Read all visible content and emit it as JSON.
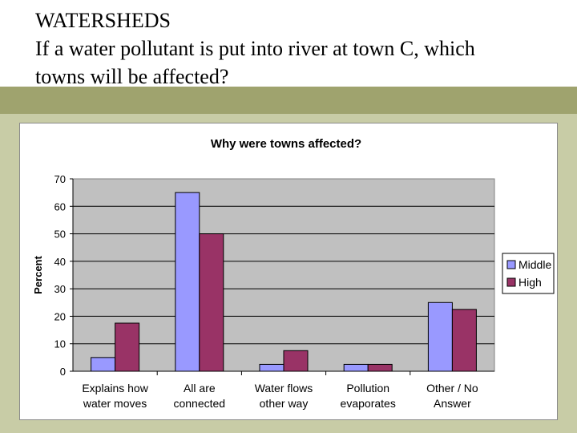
{
  "slide": {
    "title_line1": "WATERSHEDS",
    "title_line2": "If a water pollutant is put into river at town C, which",
    "title_line3": "towns will be affected?"
  },
  "colors": {
    "middle": "#9999ff",
    "high": "#993366",
    "plot_bg": "#c0c0c0",
    "band": "#9fa36e",
    "background": "#c8cca6"
  },
  "chart_data": {
    "type": "bar",
    "title": "Why were towns affected?",
    "xlabel": "",
    "ylabel": "Percent",
    "ylim": [
      0,
      70
    ],
    "yticks": [
      0,
      10,
      20,
      30,
      40,
      50,
      60,
      70
    ],
    "grid": true,
    "legend_position": "right",
    "categories": [
      [
        "Explains how",
        "water moves"
      ],
      [
        "All are",
        "connected"
      ],
      [
        "Water flows",
        "other way"
      ],
      [
        "Pollution",
        "evaporates"
      ],
      [
        "Other / No",
        "Answer"
      ]
    ],
    "series": [
      {
        "name": "Middle",
        "values": [
          5,
          65,
          2.5,
          2.5,
          25
        ]
      },
      {
        "name": "High",
        "values": [
          17.5,
          50,
          7.5,
          2.5,
          22.5
        ]
      }
    ]
  }
}
